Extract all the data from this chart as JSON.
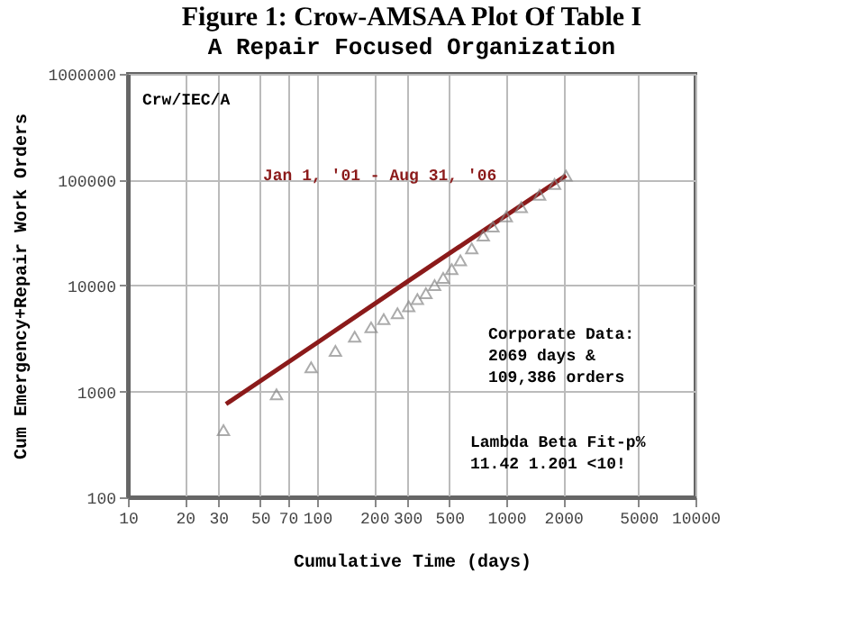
{
  "chart_data": {
    "type": "scatter",
    "title": "Figure 1:  Crow-AMSAA Plot Of Table I",
    "subtitle": "A Repair Focused Organization",
    "xlabel": "Cumulative Time (days)",
    "ylabel": "Cum Emergency+Repair Work Orders",
    "log": "xy",
    "grid": true,
    "xlim": [
      10,
      10000
    ],
    "ylim": [
      100,
      1000000
    ],
    "xticks": [
      10,
      20,
      30,
      50,
      70,
      100,
      200,
      300,
      500,
      1000,
      2000,
      5000,
      10000
    ],
    "yticks": [
      100,
      1000,
      10000,
      100000,
      1000000
    ],
    "series": [
      {
        "type": "scatter",
        "color": "#888888",
        "marker": "triangle",
        "x": [
          32,
          61,
          93,
          125,
          158,
          193,
          225,
          266,
          305,
          339,
          376,
          418,
          464,
          515,
          572,
          657,
          756,
          850,
          1000,
          1200,
          1500,
          1800,
          2069
        ],
        "values": [
          430,
          940,
          1690,
          2420,
          3290,
          4030,
          4820,
          5470,
          6380,
          7450,
          8480,
          10100,
          11800,
          14300,
          17300,
          22400,
          29600,
          36000,
          45000,
          55000,
          72000,
          91000,
          109386
        ]
      },
      {
        "type": "line",
        "color": "#8b1a1a",
        "marker": "none",
        "line_style": "solid",
        "x": [
          33,
          100,
          300,
          1000,
          2069
        ],
        "values": [
          760,
          2880,
          10900,
          46100,
          109800
        ]
      }
    ],
    "annotations": [
      "Crw/IEC/A",
      "Jan 1, '01 - Aug 31, '06",
      "Corporate Data:\n2069 days &\n109,386 orders",
      "Lambda Beta  Fit-p%\n11.42  1.201  <10!"
    ]
  }
}
